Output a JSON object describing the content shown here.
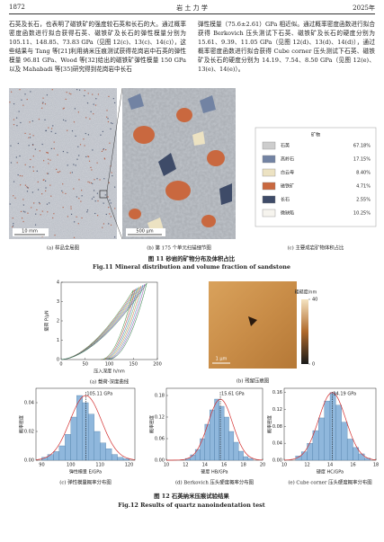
{
  "header": {
    "page": "1872",
    "journal": "岩 土 力 学",
    "year": "2025年"
  },
  "body": {
    "left": "石英及长石，也表明了磁铁矿的强度较石英和长石的大。通过概率密度函数进行拟合获得石英、磁铁矿及长石的弹性模量分别为 105.11、148.85、73.83 GPa（见图 12(c)、13(c)、14(c)），这些结果与 Tang 等[21]利用纳米压痕测试获得花岗岩中石英的弹性模量 96.81 GPa、Wood 等[32]给出的磁铁矿弹性模量 150 GPa 以及 Mahabadi 等[35]研究得到花岗岩中长石",
    "right": "弹性模量（75.6±2.61）GPa 相近似。通过概率密度函数进行拟合获得 Berkovich 压头测试下石英、磁铁矿及长石的硬度分别为 15.61、9.39、11.05 GPa（见图 12(d)、13(d)、14(d)），通过概率密度函数进行拟合获得 Cube corner 压头测试下石英、磁铁矿及长石的硬度分别为 14.19、7.54、8.50 GPa（见图 12(e)、13(e)、14(e)）。"
  },
  "figure11": {
    "panels": [
      {
        "caption": "(a) 样品全局图",
        "scale_bar": "10 mm"
      },
      {
        "caption": "(b) 第 175 个单元扫描细节图",
        "scale_bar": "500 μm"
      },
      {
        "caption": "(c) 主要成岩矿物体积占比"
      }
    ],
    "legend": {
      "title": "矿物",
      "items": [
        {
          "name": "石英",
          "value": "67.18%",
          "color": "#cdcdcd"
        },
        {
          "name": "高岭石",
          "value": "17.15%",
          "color": "#7283a3"
        },
        {
          "name": "白云母",
          "value": "8.40%",
          "color": "#ece2c2"
        },
        {
          "name": "磁铁矿",
          "value": "4.71%",
          "color": "#c9683f"
        },
        {
          "name": "长石",
          "value": "2.55%",
          "color": "#3e4b68"
        },
        {
          "name": "微缺陷",
          "value": "10.25%",
          "color": "#f6f4ee"
        }
      ]
    },
    "caption_cn": "图 11   砂岩的矿物分布及体积占比",
    "caption_en": "Fig.11   Mineral distribution and volume fraction of sandstone"
  },
  "figure12": {
    "panel_a": {
      "caption": "(a) 载荷-深度曲线",
      "xlabel": "压入深度 h/nm",
      "ylabel": "载荷 P/μN",
      "xlim": [
        0,
        200
      ],
      "xticks": [
        0,
        50,
        100,
        150,
        200
      ],
      "ylim": [
        0,
        4
      ],
      "yticks": [
        0,
        1,
        2,
        3,
        4
      ]
    },
    "panel_b": {
      "caption": "(b) 残留压痕图",
      "colorbar_title": "粗糙度/nm",
      "colorbar_lim": [
        0,
        40
      ],
      "colorbar_ticks": [
        0,
        40
      ],
      "scale_bar": "1 μm"
    },
    "histograms": [
      {
        "type": "histogram",
        "caption": "(c) 弹性模量概率分布图",
        "xlabel": "弹性模量 E/GPa",
        "ylabel": "概率密度",
        "xlim": [
          88,
          122
        ],
        "xticks": [
          90,
          100,
          110,
          120
        ],
        "ylim": [
          0,
          0.05
        ],
        "yticks": [
          {
            "value": 0,
            "label": "0.00"
          },
          0.02,
          0.04
        ],
        "bins": [
          90,
          92,
          94,
          96,
          98,
          100,
          102,
          104,
          106,
          108,
          110,
          112,
          114,
          116,
          118,
          120
        ],
        "values": [
          0.002,
          0.004,
          0.006,
          0.01,
          0.018,
          0.03,
          0.045,
          0.04,
          0.032,
          0.02,
          0.012,
          0.008,
          0.004,
          0.002,
          0.001
        ],
        "mean": 105.11,
        "mean_label": "105.11 GPa",
        "color": "#8fb7dc"
      },
      {
        "type": "histogram",
        "caption": "(d) Berkovich 压头硬度概率分布图",
        "xlabel": "硬度 HB/GPa",
        "ylabel": "概率密度",
        "xlim": [
          10,
          20
        ],
        "xticks": [
          10,
          12,
          14,
          16,
          18,
          20
        ],
        "ylim": [
          0,
          0.2
        ],
        "yticks": [
          {
            "value": 0,
            "label": "0.00"
          },
          0.06,
          0.12,
          0.18
        ],
        "bins": [
          12,
          12.5,
          13,
          13.5,
          14,
          14.5,
          15,
          15.5,
          16,
          16.5,
          17,
          17.5,
          18,
          18.5,
          19
        ],
        "values": [
          0.005,
          0.015,
          0.03,
          0.06,
          0.1,
          0.14,
          0.17,
          0.15,
          0.12,
          0.08,
          0.05,
          0.025,
          0.01,
          0.005
        ],
        "mean": 15.61,
        "mean_label": "15.61 GPa",
        "color": "#8fb7dc"
      },
      {
        "type": "histogram",
        "caption": "(e) Cube corner 压头硬度概率分布图",
        "xlabel": "硬度 HC/GPa",
        "ylabel": "概率密度",
        "xlim": [
          10,
          18
        ],
        "xticks": [
          10,
          12,
          14,
          16,
          18
        ],
        "ylim": [
          0,
          0.17
        ],
        "yticks": [
          {
            "value": 0,
            "label": "0.00"
          },
          0.04,
          0.08,
          0.12,
          0.16
        ],
        "bins": [
          11,
          11.5,
          12,
          12.5,
          13,
          13.5,
          14,
          14.5,
          15,
          15.5,
          16,
          16.5,
          17,
          17.5
        ],
        "values": [
          0.01,
          0.02,
          0.04,
          0.07,
          0.1,
          0.14,
          0.16,
          0.13,
          0.09,
          0.05,
          0.03,
          0.015,
          0.005
        ],
        "mean": 14.19,
        "mean_label": "14.19 GPa",
        "color": "#8fb7dc"
      }
    ],
    "caption_cn": "图 12   石英纳米压痕试验结果",
    "caption_en": "Fig.12   Results of quartz nanoindentation test"
  }
}
